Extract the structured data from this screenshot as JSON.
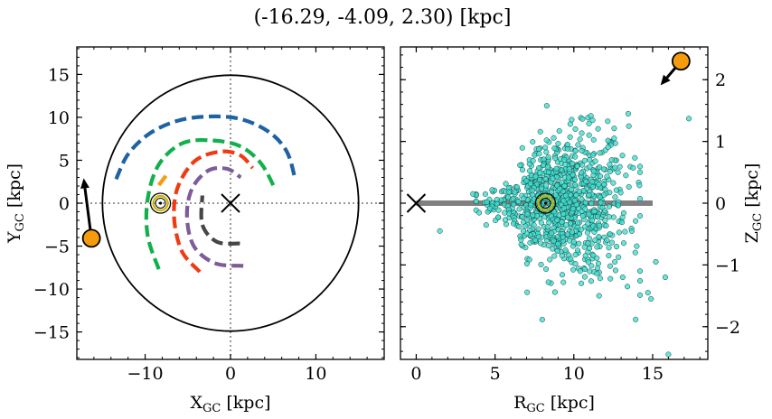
{
  "title": "(-16.29, -4.09, 2.30) [kpc]",
  "chart_data": [
    {
      "type": "line",
      "panel": "left",
      "xlabel_base": "X",
      "xlabel_sub": "GC",
      "xlabel_unit": "[kpc]",
      "ylabel_base": "Y",
      "ylabel_sub": "GC",
      "ylabel_unit": "[kpc]",
      "xlim": [
        -18,
        18
      ],
      "ylim": [
        -18.2,
        18.2
      ],
      "xticks": [
        -10,
        0,
        10
      ],
      "xtick_labels": [
        "−10",
        "0",
        "10"
      ],
      "yticks": [
        -15,
        -10,
        -5,
        0,
        5,
        10,
        15
      ],
      "ytick_labels": [
        "−15",
        "−10",
        "−5",
        "0",
        "5",
        "10",
        "15"
      ],
      "grid": false,
      "reference_lines": {
        "x": 0,
        "y": 0,
        "style": "dotted"
      },
      "galaxy_circle": {
        "cx": 0,
        "cy": 0,
        "r": 15
      },
      "galactic_center": {
        "x": 0,
        "y": 0,
        "marker": "x"
      },
      "sun": {
        "x": -8.2,
        "y": 0
      },
      "target": {
        "x": -16.29,
        "y": -4.09,
        "color": "#f59c0e"
      },
      "target_arrow": {
        "from": [
          -16.29,
          -4.09
        ],
        "to": [
          -17.2,
          2.9
        ]
      },
      "series": [
        {
          "color": "#1f62a4",
          "values": [
            [
              -13.4,
              2.8
            ],
            [
              -12.0,
              5.7
            ],
            [
              -9.5,
              8.1
            ],
            [
              -6.2,
              9.6
            ],
            [
              -2.5,
              10.1
            ],
            [
              1.2,
              9.8
            ],
            [
              4.5,
              8.3
            ],
            [
              6.6,
              6.0
            ],
            [
              7.6,
              2.7
            ]
          ]
        },
        {
          "color": "#12b04d",
          "values": [
            [
              -8.4,
              -7.7
            ],
            [
              -9.7,
              -3.8
            ],
            [
              -9.7,
              0.5
            ],
            [
              -8.4,
              4.5
            ],
            [
              -5.6,
              7.0
            ],
            [
              -2.0,
              7.3
            ],
            [
              1.2,
              6.6
            ],
            [
              3.6,
              4.6
            ],
            [
              5.2,
              1.7
            ]
          ]
        },
        {
          "color": "#f59c0e",
          "values": [
            [
              -8.4,
              2.1
            ],
            [
              -7.4,
              3.4
            ]
          ]
        },
        {
          "color": "#ef3a12",
          "values": [
            [
              -3.6,
              -8.0
            ],
            [
              -5.7,
              -5.6
            ],
            [
              -6.6,
              -1.8
            ],
            [
              -6.2,
              1.8
            ],
            [
              -4.2,
              4.9
            ],
            [
              -1.3,
              6.0
            ],
            [
              1.1,
              5.6
            ],
            [
              2.6,
              4.1
            ]
          ]
        },
        {
          "color": "#7d5c98",
          "values": [
            [
              1.5,
              -7.3
            ],
            [
              -1.8,
              -7.0
            ],
            [
              -4.3,
              -5.0
            ],
            [
              -5.1,
              -1.5
            ],
            [
              -4.5,
              1.7
            ],
            [
              -2.6,
              3.8
            ],
            [
              -0.4,
              4.0
            ],
            [
              1.2,
              3.0
            ]
          ]
        },
        {
          "color": "#464646",
          "values": [
            [
              1.1,
              -4.7
            ],
            [
              -1.6,
              -4.5
            ],
            [
              -3.3,
              -2.5
            ],
            [
              -3.3,
              0.9
            ]
          ]
        }
      ]
    },
    {
      "type": "scatter",
      "panel": "right",
      "xlabel_base": "R",
      "xlabel_sub": "GC",
      "xlabel_unit": "[kpc]",
      "ylabel_base": "Z",
      "ylabel_sub": "GC",
      "ylabel_unit": "[kpc]",
      "xlim": [
        -1,
        18.5
      ],
      "ylim": [
        -2.53,
        2.53
      ],
      "xticks": [
        0,
        5,
        10,
        15
      ],
      "xtick_labels": [
        "0",
        "5",
        "10",
        "15"
      ],
      "yticks": [
        -2,
        -1,
        0,
        1,
        2
      ],
      "ytick_labels": [
        "−2",
        "−1",
        "0",
        "1",
        "2"
      ],
      "grid": false,
      "disk_line": {
        "x0": 0,
        "x1": 15,
        "y": 0,
        "color": "#808080"
      },
      "galactic_center": {
        "x": 0,
        "y": 0,
        "marker": "x"
      },
      "sun": {
        "x": 8.2,
        "y": 0
      },
      "target": {
        "x": 16.8,
        "y": 2.3,
        "color": "#f59c0e"
      },
      "target_arrow": {
        "from": [
          16.8,
          2.3
        ],
        "to": [
          15.5,
          1.91
        ]
      },
      "point_color": "#40e0d0",
      "cluster": {
        "center_x": 9.2,
        "spread_x": 2.1,
        "x_min": 3.8,
        "x_max": 14.2,
        "z_spread": 0.28,
        "z_flare_per_kpc": 0.045
      },
      "outliers": [
        [
          1.5,
          -0.45
        ],
        [
          3.6,
          0.15
        ],
        [
          7.8,
          0.8
        ],
        [
          8.4,
          0.5
        ],
        [
          9.6,
          0.95
        ],
        [
          10.1,
          1.2
        ],
        [
          10.5,
          0.85
        ],
        [
          11.0,
          0.7
        ],
        [
          11.9,
          0.55
        ],
        [
          12.4,
          0.7
        ],
        [
          12.8,
          0.5
        ],
        [
          13.3,
          0.45
        ],
        [
          17.3,
          1.37
        ],
        [
          15.8,
          -1.2
        ],
        [
          16.0,
          -2.45
        ],
        [
          14.7,
          -1.45
        ],
        [
          14.2,
          -1.1
        ],
        [
          13.9,
          -0.8
        ],
        [
          13.4,
          -1.35
        ],
        [
          12.6,
          -0.95
        ],
        [
          11.6,
          -1.5
        ],
        [
          10.9,
          -0.65
        ],
        [
          10.4,
          -1.1
        ],
        [
          9.8,
          -0.9
        ],
        [
          9.3,
          -0.55
        ],
        [
          7.9,
          -0.65
        ],
        [
          6.8,
          -0.45
        ],
        [
          15.2,
          -0.95
        ],
        [
          14.9,
          -1.55
        ],
        [
          13.1,
          -1.2
        ],
        [
          11.5,
          -1.05
        ],
        [
          12.1,
          -0.6
        ]
      ]
    }
  ]
}
